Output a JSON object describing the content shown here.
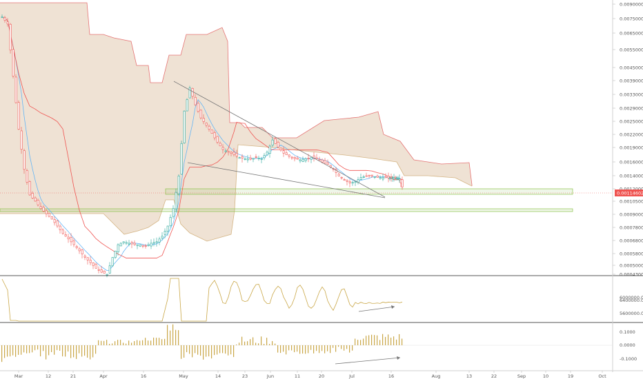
{
  "chart_data": {
    "type": "candlestick",
    "x_ticks": [
      "Mar",
      "12",
      "21",
      "Apr",
      "16",
      "May",
      "14",
      "23",
      "Jun",
      "11",
      "20",
      "Jul",
      "16",
      "Aug",
      "13",
      "22",
      "Sep",
      "10",
      "19",
      "Oct"
    ],
    "price_axis_labels": [
      "0.00900000",
      "0.00750000",
      "0.00650000",
      "0.00550000",
      "0.00450000",
      "0.00390000",
      "0.00330000",
      "0.00290000",
      "0.00250000",
      "0.00220000",
      "0.00190000",
      "0.00160000",
      "0.00140000",
      "0.00120000",
      "0.00105000",
      "0.00090000",
      "0.00078000",
      "0.00068000",
      "0.00058000",
      "0.00050000",
      "0.00043000"
    ],
    "current_price": "0.00114602",
    "volume_axis_labels": [
      "6400000.0000",
      "6000000.0000",
      "5600000.0000"
    ],
    "osc_axis_labels": [
      "0.1000",
      "0.0000",
      "-0.1000"
    ],
    "colors": {
      "up": "#26a69a",
      "down": "#ef5350",
      "cloud": "#e9d8c6",
      "kijun": "#ef5350",
      "tenkan": "#64b5f6",
      "volume_line": "#c9a646",
      "histogram": "#c9a646",
      "zone": "#7cb342",
      "trendline": "#757575"
    }
  }
}
